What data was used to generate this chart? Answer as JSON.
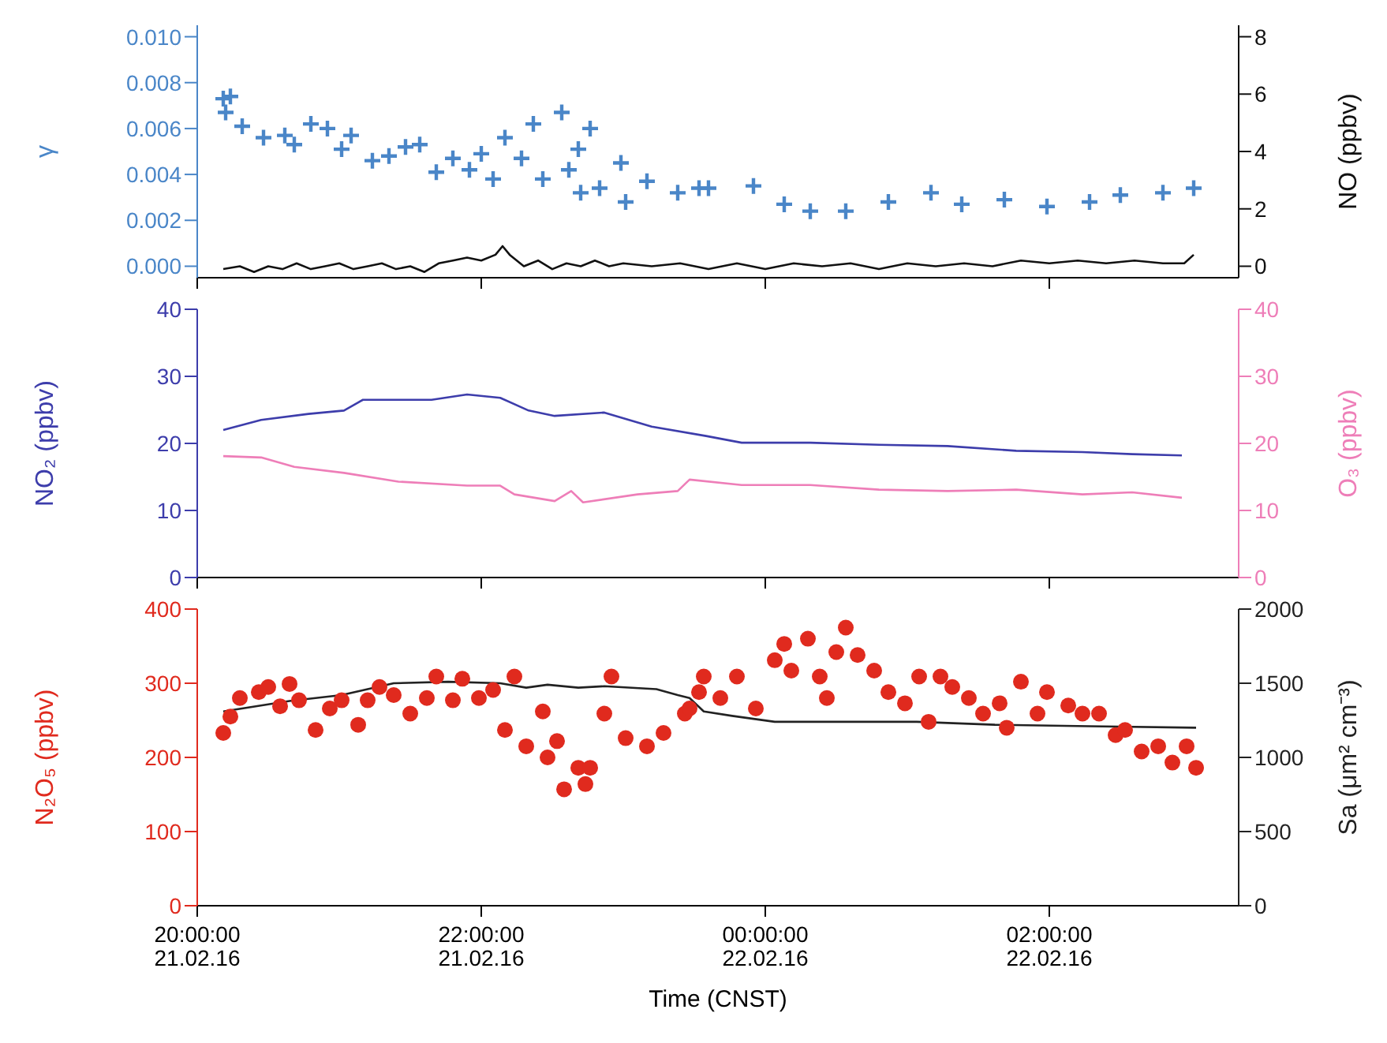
{
  "chart_data": [
    {
      "type": "scatter",
      "ylabel": "γ",
      "y2label": "NO (ppbv)",
      "xlim": [
        "--02-21T20:00",
        "--02-22T03:20"
      ],
      "xticks": [
        "--02-21T20:00",
        "--02-21T22:00",
        "--02-22T00:00",
        "--02-22T02:00"
      ],
      "tick_labels": "y",
      "ylim": [
        -0.0005,
        0.0105
      ],
      "yticks": [
        {
          "value": 0,
          "label": "0.000"
        },
        {
          "value": 0.002,
          "label": "0.002"
        },
        {
          "value": 0.004,
          "label": "0.004"
        },
        {
          "value": 0.006,
          "label": "0.006"
        },
        {
          "value": 0.008,
          "label": "0.008"
        },
        {
          "value": 0.01,
          "label": "0.010"
        }
      ],
      "y2lim": [
        -0.4,
        8.4
      ],
      "y2ticks": [
        0,
        2,
        4,
        6,
        8
      ],
      "series": [
        {
          "marker": "cross",
          "color": "#4a86c8",
          "x": [
            "--02-21T20:11",
            "--02-21T20:14",
            "--02-21T20:12",
            "--02-21T20:19",
            "--02-21T20:28",
            "--02-21T20:37",
            "--02-21T20:41",
            "--02-21T20:48",
            "--02-21T20:55",
            "--02-21T21:01",
            "--02-21T21:05",
            "--02-21T21:14",
            "--02-21T21:21",
            "--02-21T21:28",
            "--02-21T21:34",
            "--02-21T21:41",
            "--02-21T21:48",
            "--02-21T21:55",
            "--02-21T22:00",
            "--02-21T22:05",
            "--02-21T22:10",
            "--02-21T22:17",
            "--02-21T22:22",
            "--02-21T22:26",
            "--02-21T22:34",
            "--02-21T22:37",
            "--02-21T22:41",
            "--02-21T22:46",
            "--02-21T22:42",
            "--02-21T22:50",
            "--02-21T22:59",
            "--02-21T23:01",
            "--02-21T23:10",
            "--02-21T23:23",
            "--02-21T23:32",
            "--02-21T23:36",
            "--02-21T23:55",
            "--02-22T00:08",
            "--02-22T00:19",
            "--02-22T00:34",
            "--02-22T00:52",
            "--02-22T01:10",
            "--02-22T01:23",
            "--02-22T01:41",
            "--02-22T01:59",
            "--02-22T02:17",
            "--02-22T02:30",
            "--02-22T02:48",
            "--02-22T03:01"
          ],
          "values": [
            0.0073,
            0.0074,
            0.0067,
            0.0061,
            0.0056,
            0.0057,
            0.0053,
            0.0062,
            0.006,
            0.0051,
            0.0057,
            0.0046,
            0.0048,
            0.0052,
            0.0053,
            0.0041,
            0.0047,
            0.0042,
            0.0049,
            0.0038,
            0.0056,
            0.0047,
            0.0062,
            0.0038,
            0.0067,
            0.0042,
            0.0051,
            0.006,
            0.0032,
            0.0034,
            0.0045,
            0.0028,
            0.0037,
            0.0032,
            0.0034,
            0.0034,
            0.0035,
            0.0027,
            0.0024,
            0.0024,
            0.0028,
            0.0032,
            0.0027,
            0.0029,
            0.0026,
            0.0028,
            0.0031,
            0.0032,
            0.0034
          ]
        },
        {
          "type": "line",
          "axis": "y2",
          "color": "#111111",
          "x": [
            "--02-21T20:11",
            "--02-21T20:18",
            "--02-21T20:24",
            "--02-21T20:30",
            "--02-21T20:36",
            "--02-21T20:42",
            "--02-21T20:48",
            "--02-21T20:54",
            "--02-21T21:00",
            "--02-21T21:06",
            "--02-21T21:12",
            "--02-21T21:18",
            "--02-21T21:24",
            "--02-21T21:30",
            "--02-21T21:36",
            "--02-21T21:42",
            "--02-21T21:48",
            "--02-21T21:54",
            "--02-21T22:00",
            "--02-21T22:06",
            "--02-21T22:09",
            "--02-21T22:12",
            "--02-21T22:18",
            "--02-21T22:24",
            "--02-21T22:30",
            "--02-21T22:36",
            "--02-21T22:42",
            "--02-21T22:48",
            "--02-21T22:54",
            "--02-21T23:00",
            "--02-21T23:12",
            "--02-21T23:24",
            "--02-21T23:36",
            "--02-21T23:48",
            "--02-22T00:00",
            "--02-22T00:12",
            "--02-22T00:24",
            "--02-22T00:36",
            "--02-22T00:48",
            "--02-22T01:00",
            "--02-22T01:12",
            "--02-22T01:24",
            "--02-22T01:36",
            "--02-22T01:48",
            "--02-22T02:00",
            "--02-22T02:12",
            "--02-22T02:24",
            "--02-22T02:36",
            "--02-22T02:48",
            "--02-22T02:57",
            "--02-22T03:01"
          ],
          "values": [
            -0.1,
            0.0,
            -0.2,
            0.0,
            -0.1,
            0.1,
            -0.1,
            0.0,
            0.1,
            -0.1,
            0.0,
            0.1,
            -0.1,
            0.0,
            -0.2,
            0.1,
            0.2,
            0.3,
            0.2,
            0.4,
            0.7,
            0.4,
            0.0,
            0.2,
            -0.1,
            0.1,
            0.0,
            0.2,
            0.0,
            0.1,
            0.0,
            0.1,
            -0.1,
            0.1,
            -0.1,
            0.1,
            0.0,
            0.1,
            -0.1,
            0.1,
            0.0,
            0.1,
            0.0,
            0.2,
            0.1,
            0.2,
            0.1,
            0.2,
            0.1,
            0.1,
            0.4
          ]
        }
      ]
    },
    {
      "type": "line",
      "ylabel": "NO₂ (ppbv)",
      "y2label": "O₃ (ppbv)",
      "xlim": [
        "--02-21T20:00",
        "--02-22T03:20"
      ],
      "xticks": [
        "--02-21T20:00",
        "--02-21T22:00",
        "--02-22T00:00",
        "--02-22T02:00"
      ],
      "tick_labels": "y",
      "ylim": [
        0,
        40
      ],
      "yticks": [
        0,
        10,
        20,
        30,
        40
      ],
      "y2lim": [
        0,
        40
      ],
      "y2ticks": [
        0,
        10,
        20,
        30,
        40
      ],
      "series": [
        {
          "color": "#3d3dab",
          "x": [
            "--02-21T20:11",
            "--02-21T20:27",
            "--02-21T20:47",
            "--02-21T21:02",
            "--02-21T21:10",
            "--02-21T21:39",
            "--02-21T21:54",
            "--02-21T22:08",
            "--02-21T22:20",
            "--02-21T22:31",
            "--02-21T22:52",
            "--02-21T23:12",
            "--02-21T23:35",
            "--02-21T23:50",
            "--02-22T00:19",
            "--02-22T00:48",
            "--02-22T01:17",
            "--02-22T01:46",
            "--02-22T02:14",
            "--02-22T02:35",
            "--02-22T02:56"
          ],
          "values": [
            22.0,
            23.5,
            24.4,
            24.9,
            26.5,
            26.5,
            27.3,
            26.8,
            24.9,
            24.1,
            24.6,
            22.5,
            21.1,
            20.1,
            20.1,
            19.8,
            19.6,
            18.9,
            18.7,
            18.4,
            18.2
          ]
        },
        {
          "axis": "y2",
          "color": "#ee7eb8",
          "x": [
            "--02-21T20:11",
            "--02-21T20:27",
            "--02-21T20:41",
            "--02-21T21:02",
            "--02-21T21:25",
            "--02-21T21:54",
            "--02-21T22:08",
            "--02-21T22:14",
            "--02-21T22:31",
            "--02-21T22:38",
            "--02-21T22:43",
            "--02-21T23:06",
            "--02-21T23:23",
            "--02-21T23:28",
            "--02-21T23:50",
            "--02-22T00:19",
            "--02-22T00:48",
            "--02-22T01:17",
            "--02-22T01:46",
            "--02-22T02:14",
            "--02-22T02:35",
            "--02-22T02:56"
          ],
          "values": [
            18.1,
            17.9,
            16.5,
            15.6,
            14.3,
            13.7,
            13.7,
            12.4,
            11.4,
            12.9,
            11.2,
            12.4,
            12.9,
            14.6,
            13.8,
            13.8,
            13.1,
            12.9,
            13.1,
            12.4,
            12.7,
            11.9
          ]
        }
      ]
    },
    {
      "type": "scatter",
      "ylabel": "N₂O₅ (ppbv)",
      "y2label": "Sa (μm² cm⁻³)",
      "xlabel": "Time (CNST)",
      "xlim": [
        "--02-21T20:00",
        "--02-22T03:20"
      ],
      "xticks": [
        {
          "value": "--02-21T20:00",
          "label": "20:00:00\n21.02.16"
        },
        {
          "value": "--02-21T22:00",
          "label": "22:00:00\n21.02.16"
        },
        {
          "value": "--02-22T00:00",
          "label": "00:00:00\n22.02.16"
        },
        {
          "value": "--02-22T02:00",
          "label": "02:00:00\n22.02.16"
        }
      ],
      "ylim": [
        0,
        400
      ],
      "yticks": [
        0,
        100,
        200,
        300,
        400
      ],
      "y2lim": [
        0,
        2000
      ],
      "y2ticks": [
        0,
        500,
        1000,
        1500,
        2000
      ],
      "series": [
        {
          "marker": "circle",
          "color": "#e02a1e",
          "x": [
            "--02-21T20:11",
            "--02-21T20:14",
            "--02-21T20:18",
            "--02-21T20:26",
            "--02-21T20:30",
            "--02-21T20:35",
            "--02-21T20:39",
            "--02-21T20:43",
            "--02-21T20:50",
            "--02-21T20:56",
            "--02-21T21:01",
            "--02-21T21:08",
            "--02-21T21:12",
            "--02-21T21:17",
            "--02-21T21:23",
            "--02-21T21:30",
            "--02-21T21:37",
            "--02-21T21:41",
            "--02-21T21:48",
            "--02-21T21:52",
            "--02-21T21:59",
            "--02-21T22:05",
            "--02-21T22:10",
            "--02-21T22:14",
            "--02-21T22:19",
            "--02-21T22:26",
            "--02-21T22:28",
            "--02-21T22:32",
            "--02-21T22:35",
            "--02-21T22:41",
            "--02-21T22:44",
            "--02-21T22:46",
            "--02-21T22:52",
            "--02-21T22:55",
            "--02-21T23:01",
            "--02-21T23:10",
            "--02-21T23:17",
            "--02-21T23:26",
            "--02-21T23:28",
            "--02-21T23:32",
            "--02-21T23:34",
            "--02-21T23:41",
            "--02-21T23:48",
            "--02-21T23:56",
            "--02-22T00:04",
            "--02-22T00:08",
            "--02-22T00:11",
            "--02-22T00:18",
            "--02-22T00:23",
            "--02-22T00:26",
            "--02-22T00:30",
            "--02-22T00:34",
            "--02-22T00:39",
            "--02-22T00:46",
            "--02-22T00:52",
            "--02-22T00:59",
            "--02-22T01:05",
            "--02-22T01:09",
            "--02-22T01:14",
            "--02-22T01:19",
            "--02-22T01:26",
            "--02-22T01:32",
            "--02-22T01:39",
            "--02-22T01:42",
            "--02-22T01:48",
            "--02-22T01:55",
            "--02-22T01:59",
            "--02-22T02:08",
            "--02-22T02:14",
            "--02-22T02:21",
            "--02-22T02:28",
            "--02-22T02:32",
            "--02-22T02:39",
            "--02-22T02:46",
            "--02-22T02:52",
            "--02-22T02:58",
            "--02-22T03:02"
          ],
          "values": [
            233,
            255,
            280,
            288,
            295,
            269,
            299,
            277,
            237,
            266,
            277,
            244,
            277,
            295,
            284,
            259,
            280,
            309,
            277,
            306,
            280,
            291,
            237,
            309,
            215,
            262,
            200,
            222,
            157,
            186,
            164,
            186,
            259,
            309,
            226,
            215,
            233,
            259,
            266,
            288,
            309,
            280,
            309,
            266,
            331,
            353,
            317,
            360,
            309,
            280,
            342,
            375,
            338,
            317,
            288,
            273,
            309,
            248,
            309,
            295,
            280,
            259,
            273,
            240,
            302,
            259,
            288,
            270,
            259,
            259,
            230,
            237,
            208,
            215,
            193,
            215,
            186
          ]
        },
        {
          "type": "line",
          "axis": "y2",
          "color": "#222222",
          "x": [
            "--02-21T20:11",
            "--02-21T20:39",
            "--02-21T21:01",
            "--02-21T21:23",
            "--02-21T21:46",
            "--02-21T22:08",
            "--02-21T22:19",
            "--02-21T22:28",
            "--02-21T22:41",
            "--02-21T22:52",
            "--02-21T23:14",
            "--02-21T23:23",
            "--02-21T23:28",
            "--02-21T23:34",
            "--02-21T23:46",
            "--02-22T00:04",
            "--02-22T00:30",
            "--02-22T01:04",
            "--02-22T01:37",
            "--02-22T02:17",
            "--02-22T03:02"
          ],
          "values": [
            1310,
            1380,
            1420,
            1500,
            1510,
            1500,
            1470,
            1490,
            1470,
            1480,
            1460,
            1420,
            1400,
            1310,
            1280,
            1240,
            1240,
            1240,
            1220,
            1210,
            1200
          ]
        }
      ]
    }
  ]
}
